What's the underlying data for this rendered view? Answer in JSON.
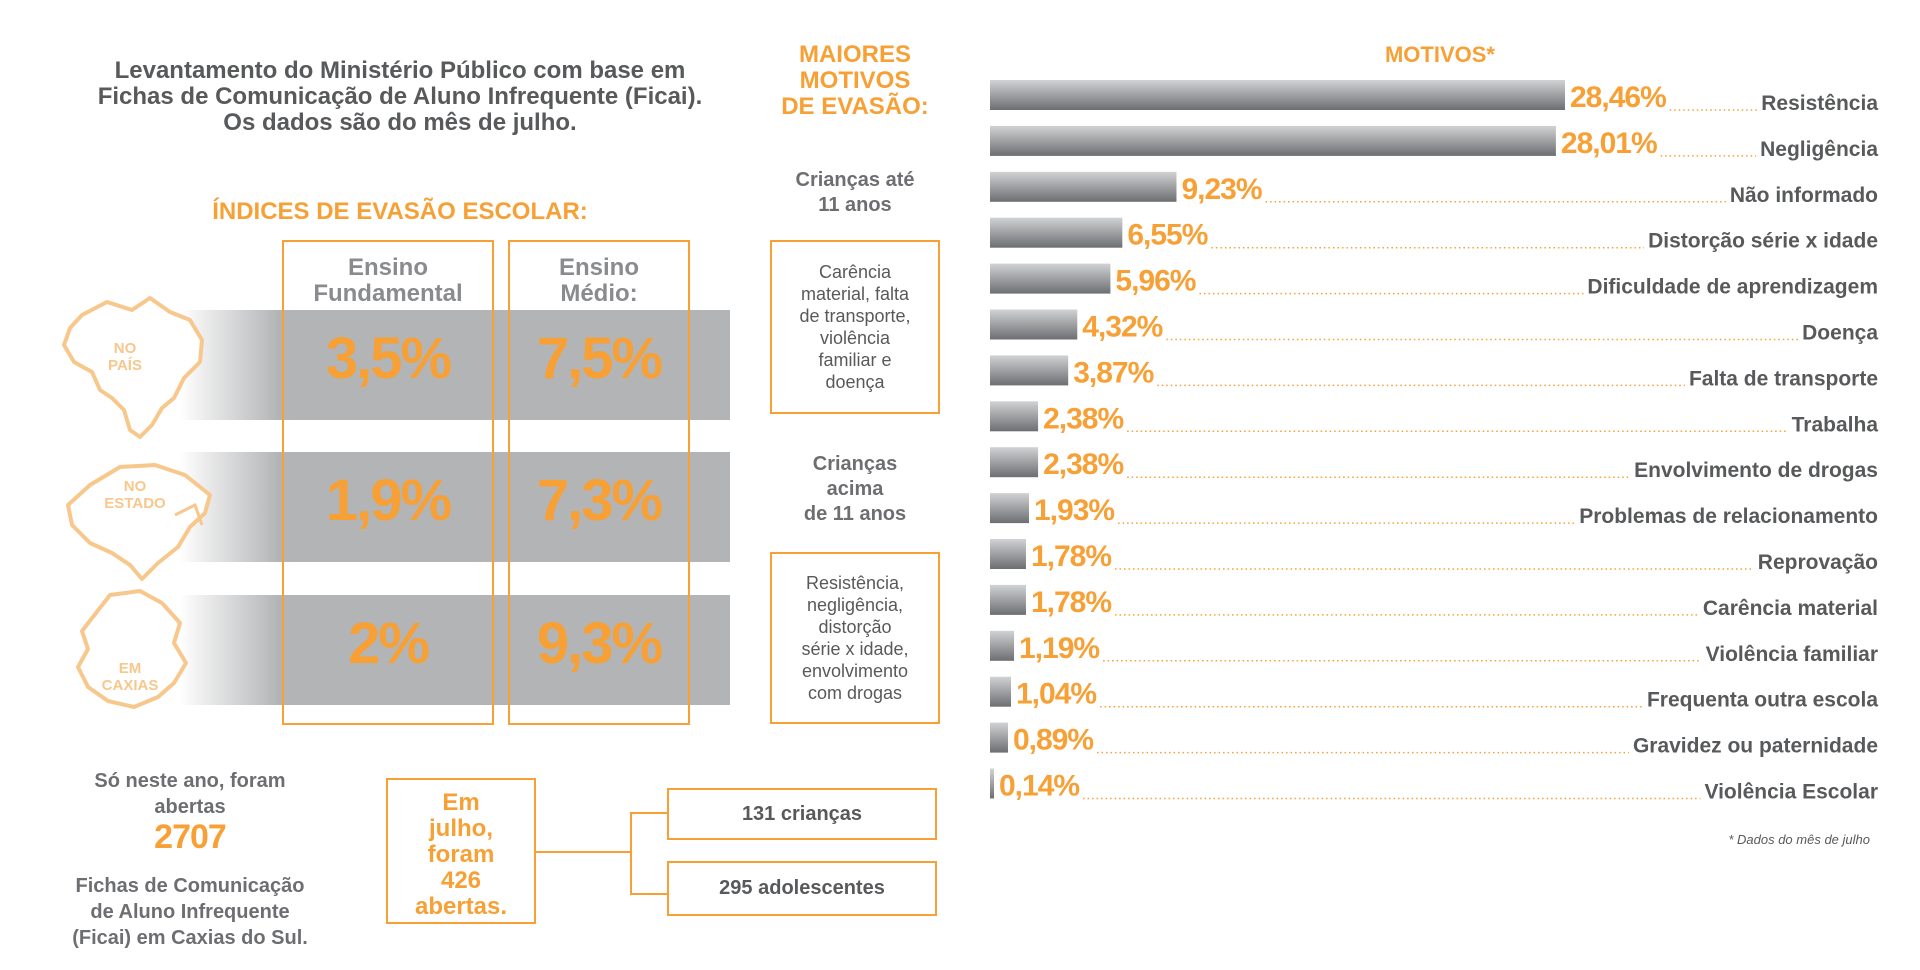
{
  "intro": {
    "line1": "Levantamento do Ministério Público com base em",
    "line2": "Fichas de Comunicação de Aluno Infrequente (Ficai).",
    "line3": "Os dados são do mês de julho."
  },
  "indices": {
    "title": "ÍNDICES DE EVASÃO ESCOLAR:",
    "columns": [
      {
        "line1": "Ensino",
        "line2": "Fundamental"
      },
      {
        "line1": "Ensino",
        "line2": "Médio:"
      }
    ],
    "rows": [
      {
        "label1": "NO",
        "label2": "PAÍS",
        "fundamental": "3,5%",
        "medio": "7,5%"
      },
      {
        "label1": "NO",
        "label2": "ESTADO",
        "fundamental": "1,9%",
        "medio": "7,3%"
      },
      {
        "label1": "EM",
        "label2": "CAXIAS",
        "fundamental": "2%",
        "medio": "9,3%"
      }
    ]
  },
  "motivos_col": {
    "title1": "MAIORES",
    "title2": "MOTIVOS",
    "title3": "DE EVASÃO:",
    "group1": {
      "line1": "Crianças até",
      "line2": "11 anos",
      "box": [
        "Carência",
        "material, falta",
        "de transporte,",
        "violência",
        "familiar e",
        "doença"
      ]
    },
    "group2": {
      "line1": "Crianças",
      "line2": "acima",
      "line3": "de 11 anos",
      "box": [
        "Resistência,",
        "negligência,",
        "distorção",
        "série x idade,",
        "envolvimento",
        "com drogas"
      ]
    }
  },
  "summary": {
    "line1": "Só neste ano, foram",
    "line2": "abertas",
    "number": "2707",
    "line3": "Fichas de Comunicação",
    "line4": "de Aluno Infrequente",
    "line5": "(Ficai) em Caxias do Sul.",
    "july": [
      "Em",
      "julho,",
      "foram",
      "426",
      "abertas."
    ],
    "counts": [
      "131 crianças",
      "295 adolescentes"
    ]
  },
  "chart_data": {
    "type": "bar",
    "orientation": "horizontal",
    "title": "MOTIVOS*",
    "categories": [
      "Resistência",
      "Negligência",
      "Não informado",
      "Distorção série x idade",
      "Dificuldade de aprendizagem",
      "Doença",
      "Falta de transporte",
      "Trabalha",
      "Envolvimento de drogas",
      "Problemas de relacionamento",
      "Reprovação",
      "Carência material",
      "Violência familiar",
      "Frequenta outra escola",
      "Gravidez ou paternidade",
      "Violência Escolar"
    ],
    "values": [
      28.46,
      28.01,
      9.23,
      6.55,
      5.96,
      4.32,
      3.87,
      2.38,
      2.38,
      1.93,
      1.78,
      1.78,
      1.19,
      1.04,
      0.89,
      0.14
    ],
    "labels": [
      "28,46%",
      "28,01%",
      "9,23%",
      "6,55%",
      "5,96%",
      "4,32%",
      "3,87%",
      "2,38%",
      "2,38%",
      "1,93%",
      "1,78%",
      "1,78%",
      "1,19%",
      "1,04%",
      "0,89%",
      "0,14%"
    ],
    "footnote": "* Dados do mês de julho",
    "colors": {
      "bar_light": "#d1d2d4",
      "bar_dark": "#6d6e71",
      "label": "#f7a035",
      "category": "#58595b",
      "leader": "#f7a035"
    }
  },
  "colors": {
    "accent": "#f7a035",
    "text": "#58595b",
    "band": "#b3b4b6",
    "map": "#f7c78c"
  }
}
